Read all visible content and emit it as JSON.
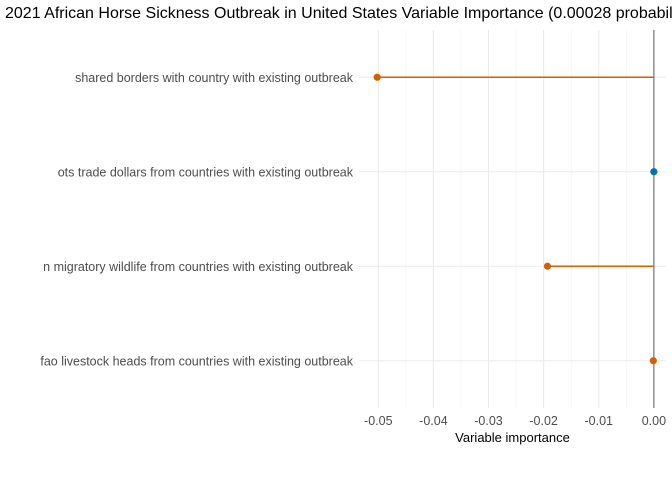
{
  "chart_data": {
    "type": "lollipop",
    "title": "2021 African Horse Sickness Outbreak in United States Variable Importance (0.00028 probabil",
    "xlabel": "Variable importance",
    "ylabel": "",
    "xlim": [
      -0.0535,
      0.0022
    ],
    "x_ticks": [
      -0.05,
      -0.04,
      -0.03,
      -0.02,
      -0.01,
      0.0
    ],
    "x_tick_labels": [
      "-0.05",
      "-0.04",
      "-0.03",
      "-0.02",
      "-0.01",
      "0.00"
    ],
    "grid": true,
    "categories": [
      "shared borders with country with existing outbreak",
      "ots trade dollars from countries with existing outbreak",
      "n migratory wildlife from countries with existing outbreak",
      "fao livestock heads from countries with existing outbreak"
    ],
    "values": [
      -0.0502,
      0.0,
      -0.0193,
      -0.0001
    ],
    "colors": {
      "negative": "#d55e00",
      "positive": "#0072b2",
      "zero_line": "#7f7f7f"
    }
  }
}
